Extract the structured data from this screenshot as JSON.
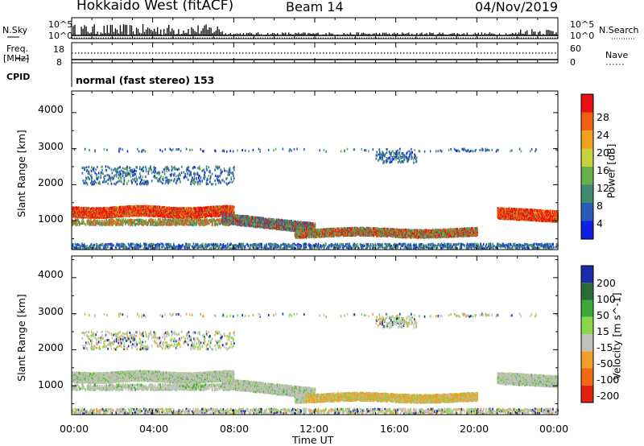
{
  "header": {
    "station": "Hokkaido West (fitACF)",
    "beam": "Beam 14",
    "date": "04/Nov/2019"
  },
  "top_panel": {
    "nsky_label": "N.Sky",
    "nsearch_label": "N.Search",
    "nsky_ticks": [
      "10^5",
      "10^0"
    ],
    "nsearch_ticks": [
      "10^5",
      "10^0"
    ],
    "freq_label": "Freq.",
    "freq_unit": "[MHz]",
    "freq_ticks": [
      "18",
      "8"
    ],
    "nave_label": "Nave",
    "nave_ticks": [
      "60",
      "0"
    ],
    "cpid_label": "CPID",
    "cpid_value": "normal (fast stereo) 153"
  },
  "chart_data": [
    {
      "type": "heatmap",
      "name": "power",
      "ylabel": "Slant Range [km]",
      "xlabel": "Time UT",
      "x_ticks": [
        "00:00",
        "04:00",
        "08:00",
        "12:00",
        "16:00",
        "20:00",
        "00:00"
      ],
      "xlim_hours": [
        0,
        24
      ],
      "ylim_km": [
        200,
        4600
      ],
      "y_ticks": [
        1000,
        2000,
        3000,
        4000
      ],
      "colorbar": {
        "label": "Power [dB]",
        "ticks": [
          4,
          8,
          12,
          16,
          20,
          24,
          28
        ],
        "range": [
          0,
          30
        ],
        "colors": [
          "#1020e0",
          "#2a5bb8",
          "#3f8a70",
          "#68b04a",
          "#c8d23a",
          "#f0a020",
          "#f06010",
          "#e81010"
        ]
      }
    },
    {
      "type": "heatmap",
      "name": "velocity",
      "ylabel": "Slant Range [km]",
      "xlabel": "Time UT",
      "x_ticks": [
        "00:00",
        "04:00",
        "08:00",
        "12:00",
        "16:00",
        "20:00",
        "00:00"
      ],
      "xlim_hours": [
        0,
        24
      ],
      "ylim_km": [
        200,
        4600
      ],
      "y_ticks": [
        1000,
        2000,
        3000,
        4000
      ],
      "colorbar": {
        "label": "Velocity [m s^-1]",
        "ticks": [
          200,
          100,
          50,
          15,
          -15,
          -50,
          -100,
          -200
        ],
        "colors": [
          "#1a2aa8",
          "#2d6a3a",
          "#3fa83a",
          "#8ad84a",
          "#c0c0bc",
          "#f0a028",
          "#f06a10",
          "#e02010"
        ]
      }
    }
  ],
  "time_label": "Time UT"
}
